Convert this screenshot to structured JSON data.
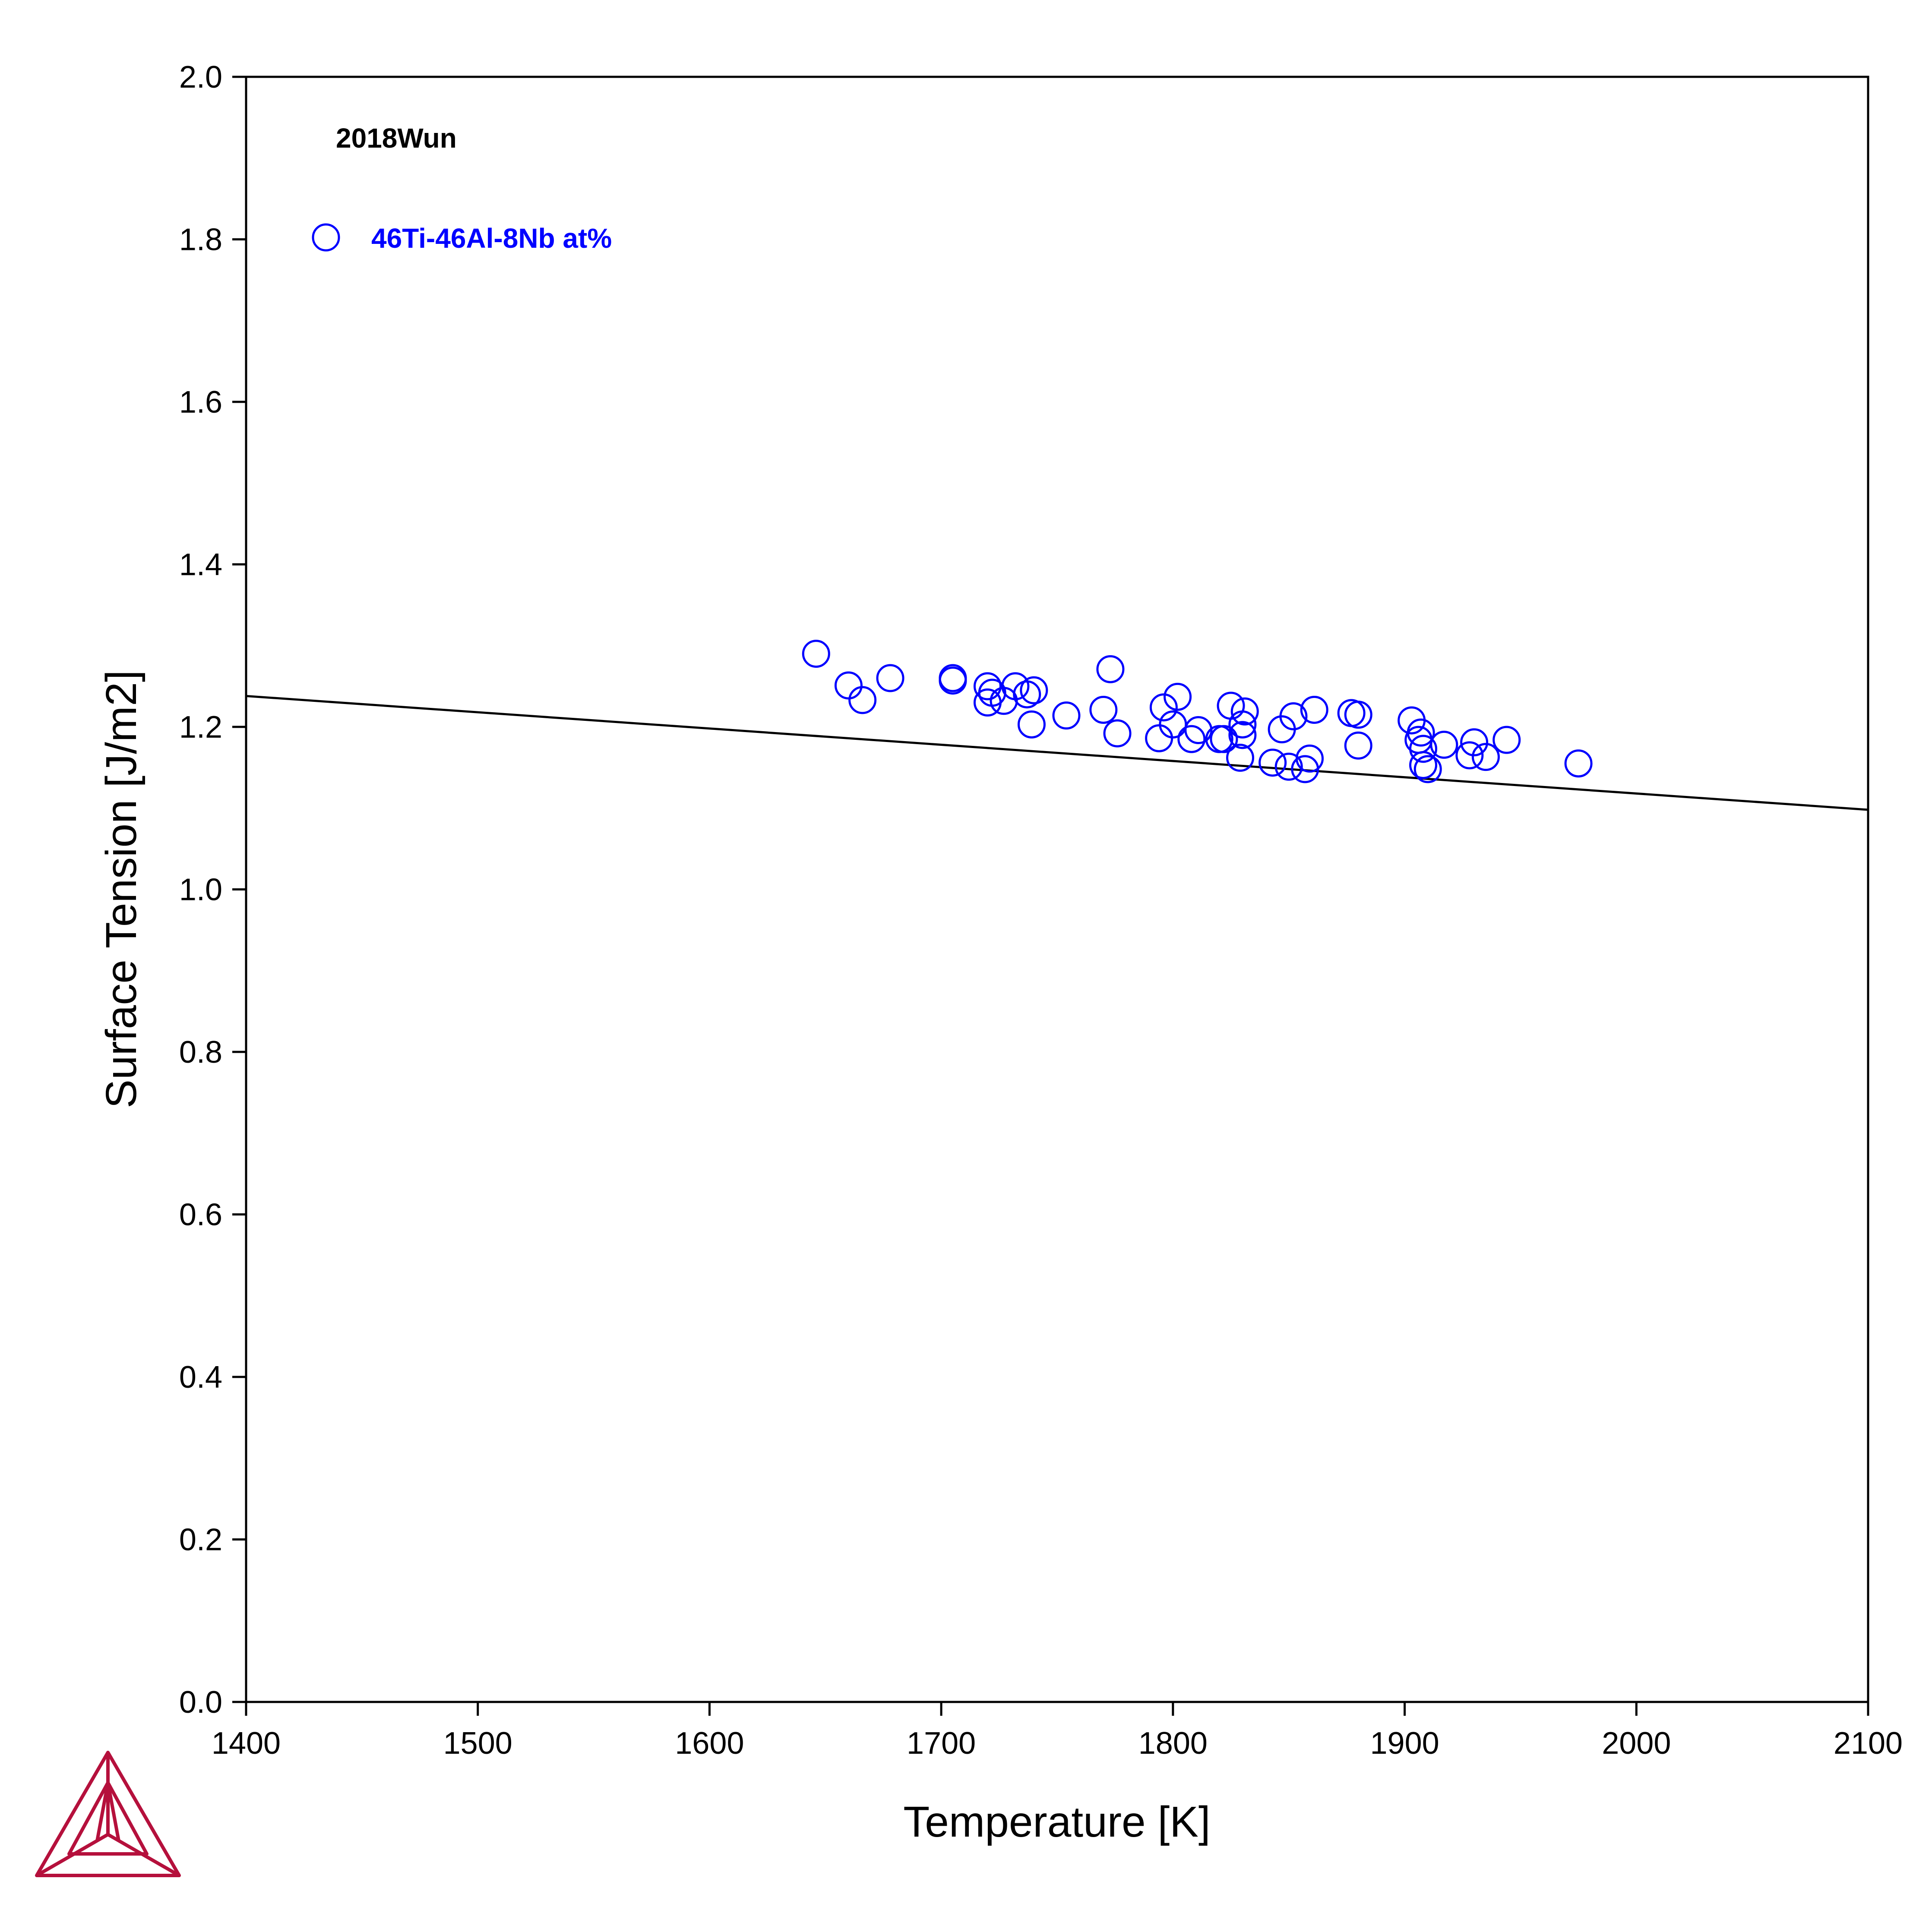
{
  "chart_data": {
    "type": "scatter",
    "xlabel": "Temperature [K]",
    "ylabel": "Surface Tension [J/m2]",
    "xlim": [
      1400,
      2100
    ],
    "ylim": [
      0.0,
      2.0
    ],
    "xticks": [
      "1400",
      "1500",
      "1600",
      "1700",
      "1800",
      "1900",
      "2000",
      "2100"
    ],
    "yticks": [
      "0.0",
      "0.2",
      "0.4",
      "0.6",
      "0.8",
      "1.0",
      "1.2",
      "1.4",
      "1.6",
      "1.8",
      "2.0"
    ],
    "source_label": "2018Wun",
    "grid": false,
    "legend_position": "top-left",
    "series": [
      {
        "name": "46Ti-46Al-8Nb at%",
        "kind": "scatter",
        "marker": "open-circle",
        "color": "#0000ff",
        "points": [
          [
            1646,
            1.29
          ],
          [
            1660,
            1.251
          ],
          [
            1666,
            1.233
          ],
          [
            1678,
            1.26
          ],
          [
            1705,
            1.26
          ],
          [
            1705,
            1.257
          ],
          [
            1720,
            1.25
          ],
          [
            1720,
            1.23
          ],
          [
            1722,
            1.242
          ],
          [
            1727,
            1.232
          ],
          [
            1732,
            1.25
          ],
          [
            1737,
            1.24
          ],
          [
            1739,
            1.203
          ],
          [
            1740,
            1.245
          ],
          [
            1754,
            1.214
          ],
          [
            1770,
            1.221
          ],
          [
            1773,
            1.271
          ],
          [
            1776,
            1.192
          ],
          [
            1794,
            1.186
          ],
          [
            1796,
            1.224
          ],
          [
            1800,
            1.203
          ],
          [
            1802,
            1.237
          ],
          [
            1808,
            1.185
          ],
          [
            1811,
            1.196
          ],
          [
            1820,
            1.185
          ],
          [
            1822,
            1.185
          ],
          [
            1825,
            1.226
          ],
          [
            1829,
            1.162
          ],
          [
            1830,
            1.19
          ],
          [
            1830,
            1.203
          ],
          [
            1831,
            1.219
          ],
          [
            1843,
            1.156
          ],
          [
            1847,
            1.197
          ],
          [
            1850,
            1.151
          ],
          [
            1852,
            1.213
          ],
          [
            1857,
            1.148
          ],
          [
            1859,
            1.161
          ],
          [
            1861,
            1.221
          ],
          [
            1877,
            1.217
          ],
          [
            1880,
            1.215
          ],
          [
            1880,
            1.177
          ],
          [
            1903,
            1.208
          ],
          [
            1906,
            1.184
          ],
          [
            1907,
            1.193
          ],
          [
            1908,
            1.153
          ],
          [
            1908,
            1.173
          ],
          [
            1910,
            1.148
          ],
          [
            1917,
            1.178
          ],
          [
            1928,
            1.165
          ],
          [
            1930,
            1.181
          ],
          [
            1935,
            1.163
          ],
          [
            1944,
            1.184
          ],
          [
            1975,
            1.155
          ]
        ]
      },
      {
        "kind": "line",
        "color": "#000000",
        "points": [
          [
            1400,
            1.238
          ],
          [
            2100,
            1.098
          ]
        ]
      }
    ]
  },
  "logo": {
    "color": "#b5103c"
  }
}
